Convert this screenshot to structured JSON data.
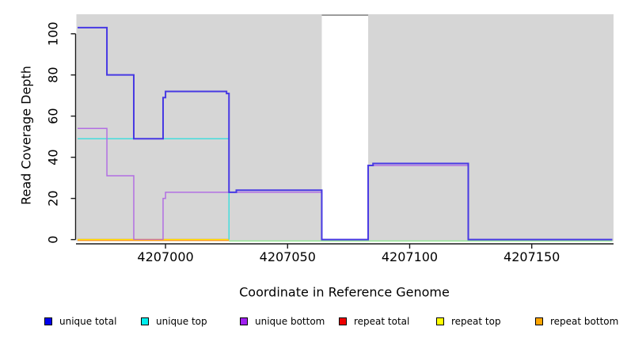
{
  "chart_data": {
    "type": "line",
    "subtype": "step-coverage-plot",
    "title": "",
    "xlabel": "Coordinate in Reference Genome",
    "ylabel": "Read Coverage Depth",
    "x_ticks": [
      4207000,
      4207050,
      4207100,
      4207150
    ],
    "x_tick_labels": [
      "4207000",
      "4207050",
      "4207100",
      "4207150"
    ],
    "y_ticks": [
      0,
      20,
      40,
      60,
      80,
      100
    ],
    "y_tick_labels": [
      "0",
      "20",
      "40",
      "60",
      "80",
      "100"
    ],
    "x_view": [
      4206963.5,
      4207183.5
    ],
    "y_view": [
      -0.8,
      109.5
    ],
    "grid": false,
    "plot_bg": "#D6D6D6",
    "axis_color": "#1a1a1a",
    "gap_region": {
      "x_start": 4207064,
      "x_end": 4207083,
      "fill": "#FFFFFF",
      "top_edge_color": "#909090"
    },
    "series": [
      {
        "name": "repeat total",
        "color": "#DD0000",
        "width": 1.4,
        "steps": [
          [
            4206964,
            0
          ]
        ],
        "end": 4207026
      },
      {
        "name": "repeat top",
        "color": "#FFFF00",
        "width": 1.4,
        "steps": [
          [
            4206964,
            0
          ]
        ],
        "end": 4207026
      },
      {
        "name": "unique top",
        "color": "#45DCDC",
        "width": 1.5,
        "steps": [
          [
            4206964,
            49
          ],
          [
            4207026,
            0
          ]
        ],
        "end": 4207026
      },
      {
        "name": "unique bottom",
        "color": "#B26FE3",
        "width": 1.5,
        "steps": [
          [
            4206964,
            54
          ],
          [
            4206976,
            31
          ],
          [
            4206987,
            0
          ],
          [
            4206999,
            20
          ],
          [
            4207000,
            23
          ],
          [
            4207064,
            0
          ],
          [
            4207083,
            36
          ],
          [
            4207124,
            0
          ]
        ],
        "end": 4207124
      },
      {
        "name": "repeat bottom",
        "color": "#FF9E1B",
        "width": 1.6,
        "steps": [
          [
            4206964,
            0
          ]
        ],
        "end": 4207026
      },
      {
        "name": "zero baseline green",
        "color": "#93E793",
        "width": 1.5,
        "steps": [
          [
            4207026,
            0
          ]
        ],
        "end": 4207183
      },
      {
        "name": "unique total",
        "color": "#4739E3",
        "width": 2,
        "steps": [
          [
            4206964,
            103
          ],
          [
            4206976,
            80
          ],
          [
            4206987,
            49
          ],
          [
            4206999,
            69
          ],
          [
            4207000,
            72
          ],
          [
            4207025,
            71
          ],
          [
            4207026,
            23
          ],
          [
            4207029,
            24
          ],
          [
            4207064,
            0
          ],
          [
            4207083,
            36
          ],
          [
            4207085,
            37
          ],
          [
            4207124,
            0
          ]
        ],
        "end": 4207183
      }
    ],
    "legend": {
      "position": "bottom",
      "items": [
        {
          "label": "unique total",
          "color": "#0000EE"
        },
        {
          "label": "unique top",
          "color": "#00EEEE"
        },
        {
          "label": "unique bottom",
          "color": "#A020F0"
        },
        {
          "label": "repeat total",
          "color": "#EE0000"
        },
        {
          "label": "repeat top",
          "color": "#FFFF00"
        },
        {
          "label": "repeat bottom",
          "color": "#FFA500"
        }
      ]
    }
  }
}
